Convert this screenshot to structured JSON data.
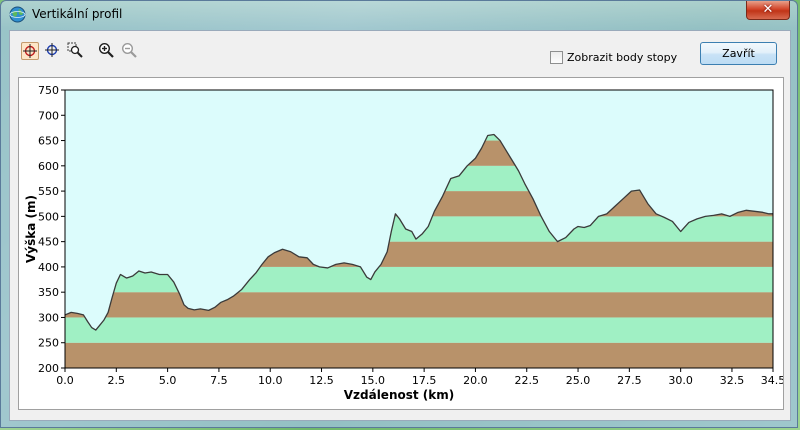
{
  "window": {
    "title": "Vertikální profil",
    "close_glyph": "✕"
  },
  "toolbar": {
    "tools": [
      {
        "name": "select-point-tool",
        "icon": "crosshair-red-icon",
        "active": true
      },
      {
        "name": "pan-tool",
        "icon": "crosshair-blue-icon",
        "active": false
      },
      {
        "name": "zoom-rect-tool",
        "icon": "zoom-rect-icon",
        "active": false
      },
      {
        "name": "zoom-in-tool",
        "icon": "zoom-in-icon",
        "active": false
      },
      {
        "name": "zoom-out-tool",
        "icon": "zoom-out-icon",
        "active": false
      }
    ],
    "show_points_label": "Zobrazit body stopy",
    "show_points_checked": false,
    "close_label": "Zavřít"
  },
  "chart_data": {
    "type": "area",
    "xlabel": "Vzdálenost  (km)",
    "ylabel": "Výška (m)",
    "xlim": [
      0,
      34.5
    ],
    "ylim": [
      200,
      750
    ],
    "xticks": [
      0,
      2.5,
      5,
      7.5,
      10,
      12.5,
      15,
      17.5,
      20,
      22.5,
      25,
      27.5,
      30,
      32.5,
      34.5
    ],
    "xtick_labels": [
      "0.0",
      "2.5",
      "5.0",
      "7.5",
      "10.0",
      "12.5",
      "15.0",
      "17.5",
      "20.0",
      "22.5",
      "25.0",
      "27.5",
      "30.0",
      "32.5",
      "34.5"
    ],
    "yticks": [
      200,
      250,
      300,
      350,
      400,
      450,
      500,
      550,
      600,
      650,
      700,
      750
    ],
    "ytick_labels": [
      "200",
      "250",
      "300",
      "350",
      "400",
      "450",
      "500",
      "550",
      "600",
      "650",
      "700",
      "750"
    ],
    "band_height_m": 50,
    "colors": {
      "sky": "#dcfcfc",
      "band_dark": "#b8926a",
      "band_light": "#a0f0c4",
      "line": "#3a3a3a"
    },
    "x": [
      0,
      0.3,
      0.6,
      0.9,
      1.1,
      1.3,
      1.5,
      1.7,
      1.9,
      2.1,
      2.3,
      2.5,
      2.7,
      3.0,
      3.3,
      3.6,
      3.9,
      4.2,
      4.6,
      5.0,
      5.3,
      5.6,
      5.8,
      6.0,
      6.3,
      6.6,
      7.0,
      7.3,
      7.6,
      7.9,
      8.2,
      8.6,
      9.0,
      9.3,
      9.6,
      9.9,
      10.2,
      10.6,
      11.0,
      11.4,
      11.8,
      12.1,
      12.4,
      12.8,
      13.2,
      13.6,
      14.0,
      14.4,
      14.7,
      14.9,
      15.1,
      15.4,
      15.7,
      15.9,
      16.1,
      16.3,
      16.6,
      16.9,
      17.1,
      17.4,
      17.7,
      18.0,
      18.4,
      18.8,
      19.2,
      19.6,
      20.0,
      20.3,
      20.6,
      20.9,
      21.2,
      21.5,
      21.8,
      22.1,
      22.4,
      22.8,
      23.2,
      23.6,
      24.0,
      24.4,
      24.8,
      25.0,
      25.3,
      25.6,
      26.0,
      26.4,
      26.8,
      27.2,
      27.6,
      28.0,
      28.4,
      28.8,
      29.2,
      29.6,
      30.0,
      30.4,
      30.8,
      31.2,
      31.6,
      32.0,
      32.4,
      32.8,
      33.2,
      33.6,
      34.0,
      34.3,
      34.5
    ],
    "y": [
      305,
      310,
      308,
      305,
      292,
      280,
      275,
      285,
      295,
      310,
      340,
      368,
      385,
      378,
      382,
      392,
      388,
      390,
      385,
      385,
      370,
      345,
      325,
      318,
      315,
      317,
      314,
      320,
      330,
      335,
      342,
      355,
      375,
      388,
      405,
      420,
      428,
      435,
      430,
      420,
      418,
      405,
      400,
      398,
      405,
      408,
      405,
      400,
      380,
      375,
      390,
      405,
      430,
      470,
      505,
      495,
      475,
      470,
      455,
      465,
      480,
      510,
      540,
      575,
      580,
      600,
      615,
      635,
      660,
      662,
      650,
      630,
      610,
      590,
      565,
      535,
      500,
      470,
      450,
      458,
      475,
      480,
      478,
      482,
      500,
      505,
      520,
      535,
      550,
      552,
      525,
      505,
      498,
      490,
      470,
      488,
      495,
      500,
      502,
      505,
      500,
      508,
      512,
      510,
      508,
      505,
      505
    ]
  }
}
